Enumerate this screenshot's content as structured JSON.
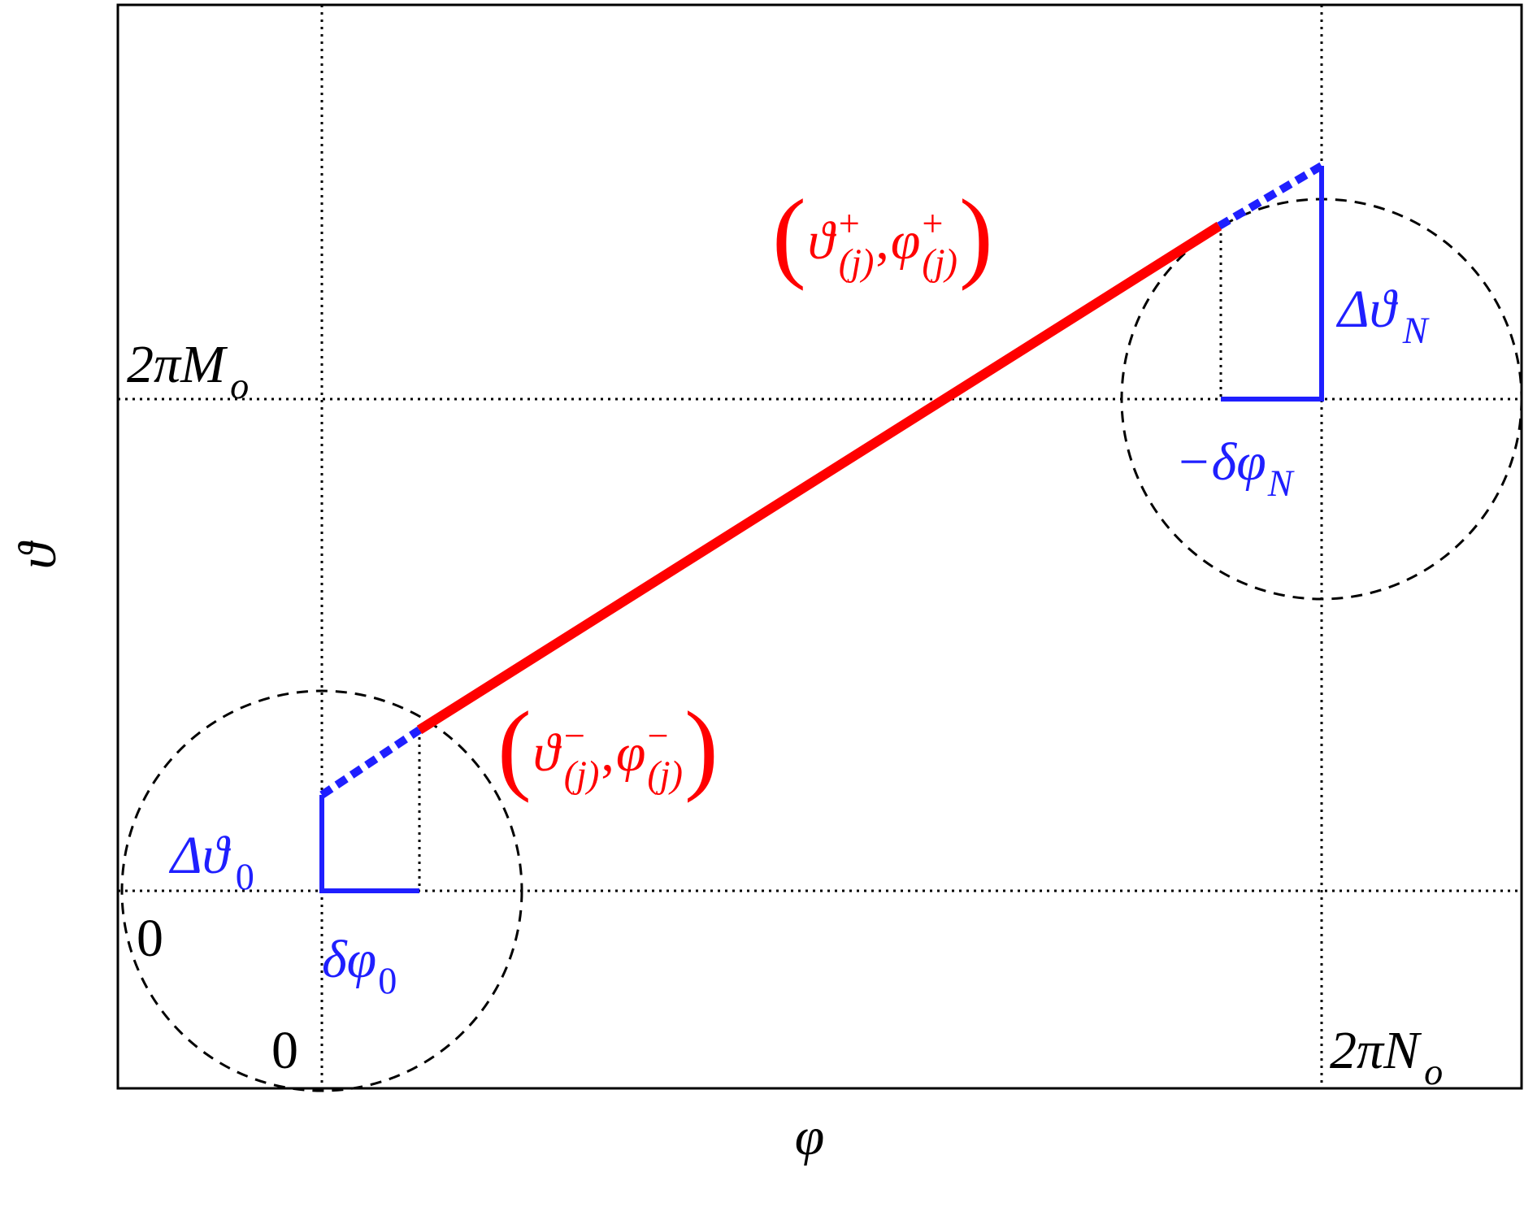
{
  "axes": {
    "x_label": "φ",
    "y_label": "ϑ"
  },
  "ticks": {
    "x_origin": "0",
    "x_end": [
      {
        "text": "2πN"
      },
      {
        "text": "o",
        "script": "sub"
      }
    ],
    "y_origin": "0",
    "y_end": [
      {
        "text": "2πM"
      },
      {
        "text": "o",
        "script": "sub"
      }
    ]
  },
  "labels": {
    "delta_theta_0": [
      {
        "text": "Δϑ"
      },
      {
        "text": "0",
        "script": "sub"
      }
    ],
    "delta_phi_0": [
      {
        "text": "δφ"
      },
      {
        "text": "0",
        "script": "sub"
      }
    ],
    "delta_theta_N": [
      {
        "text": "Δϑ"
      },
      {
        "text": "N",
        "script": "sub"
      }
    ],
    "delta_phi_N": [
      {
        "text": "−δφ"
      },
      {
        "text": "N",
        "script": "sub"
      }
    ],
    "upper_point": [
      {
        "text": "("
      },
      {
        "text": "ϑ"
      },
      {
        "text": "+",
        "script": "sup"
      },
      {
        "text": "(j)",
        "script": "sub"
      },
      {
        "text": ", "
      },
      {
        "text": "φ"
      },
      {
        "text": "+",
        "script": "sup"
      },
      {
        "text": "(j)",
        "script": "sub"
      },
      {
        "text": ")"
      }
    ],
    "lower_point": [
      {
        "text": "("
      },
      {
        "text": "ϑ"
      },
      {
        "text": "−",
        "script": "sup"
      },
      {
        "text": "(j)",
        "script": "sub"
      },
      {
        "text": ", "
      },
      {
        "text": "φ"
      },
      {
        "text": "−",
        "script": "sup"
      },
      {
        "text": "(j)",
        "script": "sub"
      },
      {
        "text": ")"
      }
    ]
  }
}
